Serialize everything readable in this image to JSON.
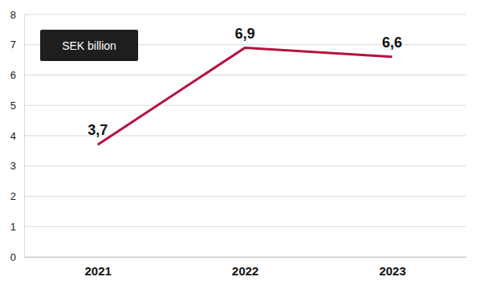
{
  "chart_data": {
    "type": "line",
    "title": "SEK billion",
    "categories": [
      "2021",
      "2022",
      "2023"
    ],
    "values": [
      3.7,
      6.9,
      6.6
    ],
    "value_labels": [
      "3,7",
      "6,9",
      "6,6"
    ],
    "color": "#b5123e",
    "ylim": [
      0,
      8
    ],
    "yticks": [
      0,
      1,
      2,
      3,
      4,
      5,
      6,
      7,
      8
    ],
    "grid": true,
    "data_labels": true
  }
}
